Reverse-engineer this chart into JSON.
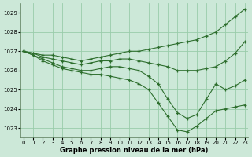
{
  "xlabel": "Graphe pression niveau de la mer (hPa)",
  "bg_color": "#cce8d8",
  "grid_color": "#99ccaa",
  "line_color": "#2d6e2d",
  "marker_color": "#2d6e2d",
  "ylim": [
    1022.5,
    1029.5
  ],
  "xlim": [
    -0.3,
    23.3
  ],
  "yticks": [
    1023,
    1024,
    1025,
    1026,
    1027,
    1028,
    1029
  ],
  "xticks": [
    0,
    1,
    2,
    3,
    4,
    5,
    6,
    7,
    8,
    9,
    10,
    11,
    12,
    13,
    14,
    15,
    16,
    17,
    18,
    19,
    20,
    21,
    22,
    23
  ],
  "series": [
    {
      "x": [
        0,
        1,
        2,
        3,
        4,
        5,
        6,
        7,
        8,
        9,
        10,
        11,
        12,
        13,
        14,
        15,
        16,
        17,
        18,
        19,
        20,
        21,
        22,
        23
      ],
      "y": [
        1027.0,
        1026.9,
        1026.8,
        1026.8,
        1026.7,
        1026.6,
        1026.5,
        1026.6,
        1026.7,
        1026.8,
        1026.9,
        1027.0,
        1027.0,
        1027.1,
        1027.2,
        1027.3,
        1027.4,
        1027.5,
        1027.6,
        1027.8,
        1028.0,
        1028.4,
        1028.8,
        1029.2
      ]
    },
    {
      "x": [
        0,
        1,
        2,
        3,
        4,
        5,
        6,
        7,
        8,
        9,
        10,
        11,
        12,
        13,
        14,
        15,
        16,
        17,
        18,
        19,
        20,
        21,
        22,
        23
      ],
      "y": [
        1027.0,
        1026.9,
        1026.7,
        1026.6,
        1026.5,
        1026.4,
        1026.3,
        1026.4,
        1026.5,
        1026.5,
        1026.6,
        1026.6,
        1026.5,
        1026.4,
        1026.3,
        1026.2,
        1026.0,
        1026.0,
        1026.0,
        1026.1,
        1026.2,
        1026.5,
        1026.9,
        1027.5
      ]
    },
    {
      "x": [
        0,
        1,
        2,
        3,
        4,
        5,
        6,
        7,
        8,
        9,
        10,
        11,
        12,
        13,
        14,
        15,
        16,
        17,
        18,
        19,
        20,
        21,
        22,
        23
      ],
      "y": [
        1027.0,
        1026.8,
        1026.6,
        1026.4,
        1026.2,
        1026.1,
        1026.0,
        1026.0,
        1026.1,
        1026.2,
        1026.2,
        1026.1,
        1026.0,
        1025.7,
        1025.3,
        1024.5,
        1023.8,
        1023.5,
        1023.7,
        1024.5,
        1025.3,
        1025.0,
        1025.2,
        1025.5
      ]
    },
    {
      "x": [
        0,
        1,
        2,
        3,
        4,
        5,
        6,
        7,
        8,
        9,
        10,
        11,
        12,
        13,
        14,
        15,
        16,
        17,
        18,
        19,
        20,
        21,
        22,
        23
      ],
      "y": [
        1027.0,
        1026.8,
        1026.5,
        1026.3,
        1026.1,
        1026.0,
        1025.9,
        1025.8,
        1025.8,
        1025.7,
        1025.6,
        1025.5,
        1025.3,
        1025.0,
        1024.3,
        1023.6,
        1022.9,
        1022.8,
        1023.1,
        1023.5,
        1023.9,
        1024.0,
        1024.1,
        1024.2
      ]
    }
  ],
  "figsize": [
    3.2,
    2.0
  ],
  "dpi": 100,
  "label_fontsize": 6.0,
  "tick_fontsize": 5.0
}
